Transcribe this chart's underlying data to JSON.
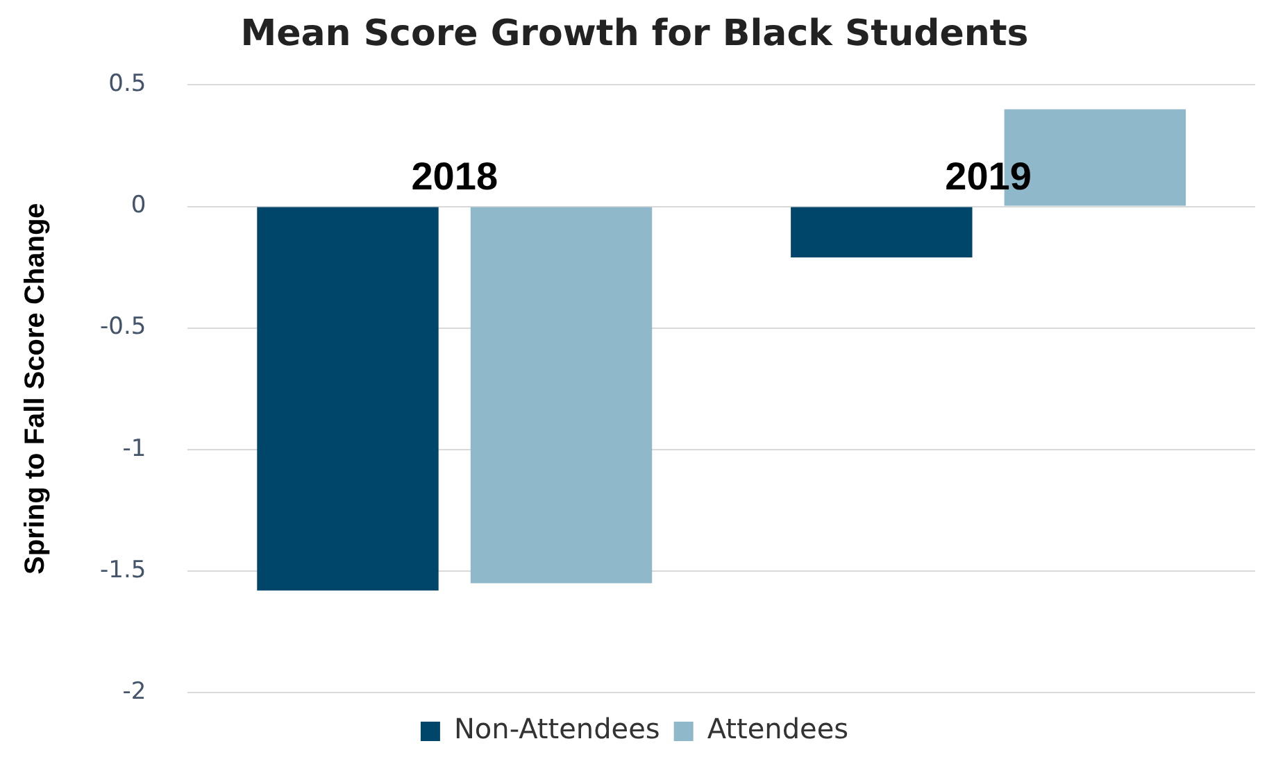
{
  "chart_data": {
    "type": "bar",
    "title": "Mean Score Growth for Black Students",
    "ylabel": "Spring to Fall Score Change",
    "categories": [
      "2018",
      "2019"
    ],
    "series": [
      {
        "name": "Non-Attendees",
        "color": "#00466b",
        "values": [
          -1.58,
          -0.21
        ]
      },
      {
        "name": "Attendees",
        "color": "#8fb8cb",
        "values": [
          -1.55,
          0.4
        ]
      }
    ],
    "ylim": [
      -2,
      0.5
    ],
    "yticks": [
      -2,
      -1.5,
      -1,
      -0.5,
      0,
      0.5
    ],
    "grid": "y",
    "legend": "bottom"
  }
}
